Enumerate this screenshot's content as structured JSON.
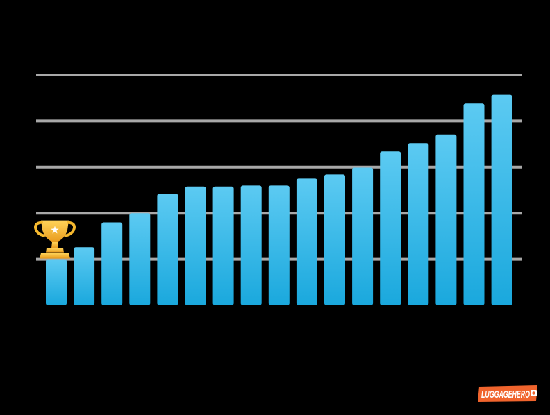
{
  "chart_data": {
    "type": "bar",
    "categories": [
      "",
      "",
      "",
      "",
      "",
      "",
      "",
      "",
      "",
      "",
      "",
      "",
      "",
      "",
      "",
      "",
      ""
    ],
    "values": [
      1.0,
      1.26,
      1.8,
      2.0,
      2.42,
      2.58,
      2.58,
      2.6,
      2.6,
      2.75,
      2.84,
      2.99,
      3.34,
      3.52,
      3.71,
      4.38,
      4.57
    ],
    "title": "",
    "xlabel": "",
    "ylabel": "",
    "ylim": [
      0,
      5
    ],
    "y_gridlines": [
      1,
      2,
      3,
      4,
      5
    ],
    "grid": true,
    "legend": "none",
    "highlight_index": 0,
    "highlight_icon": "trophy-icon",
    "colors": {
      "bar_top": "#5ccaf2",
      "bar_bottom": "#1aa8dd",
      "grid": "#a8a8a8",
      "background": "#000000",
      "trophy": "#f5b82e"
    }
  },
  "logo": {
    "icon": "luggagehero-logo-icon",
    "text": "LUGGAGEHERO",
    "color": "#f0642d"
  }
}
